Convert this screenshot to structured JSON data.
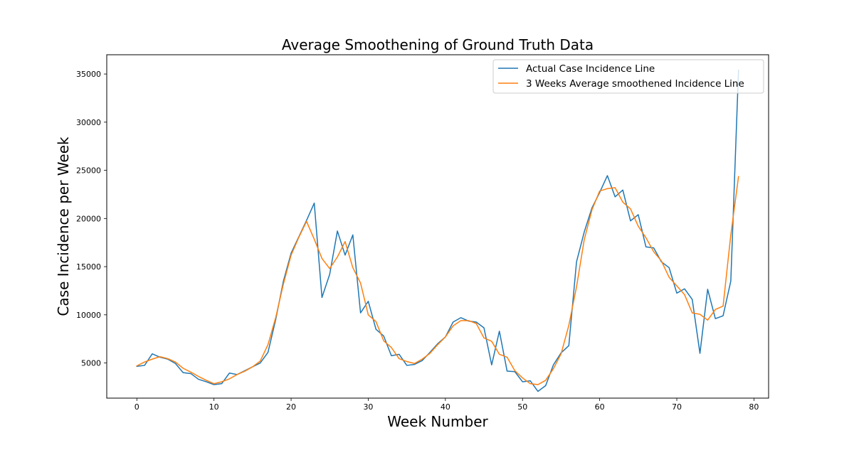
{
  "chart_data": {
    "type": "line",
    "title": "Average Smoothening of Ground Truth Data",
    "xlabel": "Week Number",
    "ylabel": "Case Incidence per Week",
    "xlim": [
      -3.9,
      81.9
    ],
    "ylim": [
      1350,
      37000
    ],
    "xticks": [
      0,
      10,
      20,
      30,
      40,
      50,
      60,
      70,
      80
    ],
    "yticks": [
      5000,
      10000,
      15000,
      20000,
      25000,
      30000,
      35000
    ],
    "grid": false,
    "legend_position": "top-right",
    "x": [
      0,
      1,
      2,
      3,
      4,
      5,
      6,
      7,
      8,
      9,
      10,
      11,
      12,
      13,
      14,
      15,
      16,
      17,
      18,
      19,
      20,
      21,
      22,
      23,
      24,
      25,
      26,
      27,
      28,
      29,
      30,
      31,
      32,
      33,
      34,
      35,
      36,
      37,
      38,
      39,
      40,
      41,
      42,
      43,
      44,
      45,
      46,
      47,
      48,
      49,
      50,
      51,
      52,
      53,
      54,
      55,
      56,
      57,
      58,
      59,
      60,
      61,
      62,
      63,
      64,
      65,
      66,
      67,
      68,
      69,
      70,
      71,
      72,
      73,
      74,
      75,
      76,
      77,
      78
    ],
    "series": [
      {
        "name": "Actual Case Incidence Line",
        "color": "#1f77b4",
        "values": [
          4650,
          4750,
          5950,
          5600,
          5400,
          4950,
          4000,
          3900,
          3300,
          3050,
          2750,
          2850,
          3950,
          3800,
          4200,
          4600,
          5000,
          6100,
          9500,
          13500,
          16400,
          18100,
          19800,
          21600,
          11800,
          14200,
          18700,
          16200,
          18300,
          10200,
          11400,
          8500,
          7800,
          5750,
          5900,
          4750,
          4850,
          5250,
          6100,
          7000,
          7700,
          9250,
          9700,
          9350,
          9250,
          8650,
          4800,
          8300,
          4150,
          4100,
          3050,
          3150,
          2050,
          2650,
          4800,
          6050,
          6800,
          15500,
          18600,
          21100,
          22700,
          24450,
          22250,
          22950,
          19750,
          20400,
          17050,
          16950,
          15500,
          14900,
          12250,
          12700,
          11600,
          6000,
          12650,
          9600,
          9900,
          13500,
          35400
        ]
      },
      {
        "name": "3 Weeks Average smoothened Incidence Line",
        "color": "#ff7f0e",
        "values": [
          4700,
          5100,
          5400,
          5650,
          5450,
          5100,
          4450,
          4050,
          3600,
          3200,
          2850,
          3050,
          3350,
          3800,
          4150,
          4600,
          5200,
          6900,
          9700,
          13200,
          16200,
          18050,
          19700,
          17850,
          15850,
          14800,
          16000,
          17600,
          14900,
          13300,
          10000,
          9300,
          7300,
          6600,
          5450,
          5150,
          4950,
          5400,
          6000,
          6900,
          7700,
          8850,
          9400,
          9400,
          9100,
          7600,
          7250,
          5900,
          5600,
          4200,
          3450,
          2850,
          2750,
          3200,
          4400,
          5950,
          8900,
          12900,
          17800,
          20900,
          22850,
          23100,
          23200,
          21700,
          21000,
          19200,
          18000,
          16550,
          15600,
          13900,
          13000,
          12100,
          10200,
          10050,
          9450,
          10550,
          10900,
          18300,
          24350
        ]
      }
    ]
  }
}
